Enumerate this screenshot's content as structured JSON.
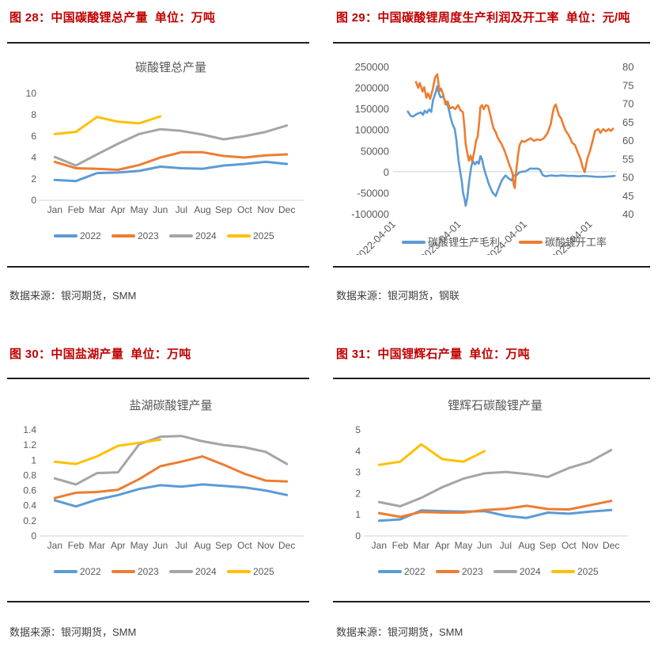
{
  "colors": {
    "title_red": "#c00000",
    "axis_text": "#595959",
    "axis_line": "#d9d9d9",
    "source_text": "#3f3f3f",
    "s2022": "#5B9BD5",
    "s2023": "#ED7D31",
    "s2024": "#A5A5A5",
    "s2025": "#FFC000"
  },
  "sections": [
    {
      "title": "图 28：中国碳酸锂总产量  单位：万吨",
      "source": "数据来源：银河期货，SMM"
    },
    {
      "title": "图 29：中国碳酸锂周度生产利润及开工率  单位：元/吨",
      "source": "数据来源：银河期货，钢联"
    },
    {
      "title": "图 30：中国盐湖产量  单位：万吨",
      "source": "数据来源：银河期货，SMM"
    },
    {
      "title": "图 31：中国锂辉石产量  单位：万吨",
      "source": "数据来源：银河期货，SMM"
    }
  ],
  "chart_data": [
    {
      "type": "line",
      "title": "碳酸锂总产量",
      "categories": [
        "Jan",
        "Feb",
        "Mar",
        "Apr",
        "May",
        "Jun",
        "Jul",
        "Aug",
        "Sep",
        "Oct",
        "Nov",
        "Dec"
      ],
      "ylim": [
        0,
        10
      ],
      "ystep": 2,
      "grid": false,
      "legend_position": "bottom",
      "series": [
        {
          "name": "2022",
          "color": "#5B9BD5",
          "values": [
            1.9,
            1.8,
            2.55,
            2.6,
            2.75,
            3.15,
            3.0,
            2.95,
            3.25,
            3.4,
            3.6,
            3.4
          ]
        },
        {
          "name": "2023",
          "color": "#ED7D31",
          "values": [
            3.6,
            3.0,
            2.95,
            2.85,
            3.3,
            4.0,
            4.5,
            4.5,
            4.15,
            4.0,
            4.2,
            4.3
          ]
        },
        {
          "name": "2024",
          "color": "#A5A5A5",
          "values": [
            4.05,
            3.25,
            4.3,
            5.3,
            6.2,
            6.65,
            6.5,
            6.15,
            5.7,
            6.0,
            6.4,
            7.0
          ]
        },
        {
          "name": "2025",
          "color": "#FFC000",
          "values": [
            6.2,
            6.4,
            7.8,
            7.35,
            7.2,
            7.85
          ]
        }
      ]
    },
    {
      "type": "line",
      "title": "",
      "x_axis_note": "weekly, x in months since 2022-04-01",
      "x_domain": [
        0,
        41
      ],
      "x_ticks": [
        {
          "m": 0,
          "label": "2022-04-01"
        },
        {
          "m": 12,
          "label": "2023-04-01"
        },
        {
          "m": 24,
          "label": "2024-04-01"
        },
        {
          "m": 36,
          "label": "2025-04-01"
        }
      ],
      "left_axis": {
        "min": -100000,
        "max": 250000,
        "step": 50000
      },
      "right_axis": {
        "min": 40,
        "max": 80,
        "step": 5
      },
      "grid": "zero-line-only",
      "legend_position": "bottom",
      "series": [
        {
          "name": "碳酸锂生产毛利",
          "axis": "left",
          "color": "#5B9BD5",
          "points": [
            [
              2.7,
              143000
            ],
            [
              3.2,
              133000
            ],
            [
              3.7,
              131000
            ],
            [
              4.3,
              137000
            ],
            [
              5.1,
              141000
            ],
            [
              5.5,
              135000
            ],
            [
              5.8,
              145000
            ],
            [
              6.2,
              140000
            ],
            [
              6.6,
              148000
            ],
            [
              7.0,
              142000
            ],
            [
              7.3,
              169000
            ],
            [
              7.8,
              188000
            ],
            [
              8.1,
              203000
            ],
            [
              8.4,
              186000
            ],
            [
              8.7,
              177000
            ],
            [
              9.1,
              179000
            ],
            [
              9.6,
              167000
            ],
            [
              10.1,
              154000
            ],
            [
              10.6,
              126000
            ],
            [
              10.9,
              113000
            ],
            [
              11.3,
              101000
            ],
            [
              11.6,
              75000
            ],
            [
              11.8,
              51000
            ],
            [
              12.0,
              26000
            ],
            [
              12.3,
              0
            ],
            [
              12.6,
              -24000
            ],
            [
              12.8,
              -49000
            ],
            [
              13.1,
              -65000
            ],
            [
              13.3,
              -81000
            ],
            [
              13.6,
              -62000
            ],
            [
              13.8,
              -37000
            ],
            [
              14.0,
              -18000
            ],
            [
              14.3,
              10000
            ],
            [
              14.6,
              26000
            ],
            [
              15.0,
              17000
            ],
            [
              15.4,
              24000
            ],
            [
              15.7,
              19000
            ],
            [
              16.0,
              37000
            ],
            [
              16.3,
              30000
            ],
            [
              16.6,
              10000
            ],
            [
              17.1,
              -11000
            ],
            [
              17.5,
              -28000
            ],
            [
              18.2,
              -49000
            ],
            [
              18.8,
              -58000
            ],
            [
              19.2,
              -44000
            ],
            [
              19.5,
              -34000
            ],
            [
              20.0,
              -19000
            ],
            [
              20.6,
              -9000
            ],
            [
              21.1,
              -15000
            ],
            [
              21.7,
              -21000
            ],
            [
              22.1,
              -9000
            ],
            [
              22.6,
              -9000
            ],
            [
              23.1,
              -2000
            ],
            [
              23.6,
              0
            ],
            [
              24.3,
              1000
            ],
            [
              24.7,
              4000
            ],
            [
              25.1,
              7500
            ],
            [
              25.8,
              7000
            ],
            [
              26.4,
              7500
            ],
            [
              26.9,
              5000
            ],
            [
              27.4,
              -8000
            ],
            [
              27.9,
              -11000
            ],
            [
              28.9,
              -9000
            ],
            [
              29.9,
              -10000
            ],
            [
              31.0,
              -9000
            ],
            [
              32.0,
              -10000
            ],
            [
              33.0,
              -10000
            ],
            [
              34.0,
              -11000
            ],
            [
              35.0,
              -10000
            ],
            [
              36.0,
              -11000
            ],
            [
              37.0,
              -12000
            ],
            [
              38.0,
              -12500
            ],
            [
              39.0,
              -12000
            ],
            [
              40.0,
              -11000
            ],
            [
              40.6,
              -10000
            ]
          ]
        },
        {
          "name": "碳酸锂开工率",
          "axis": "right",
          "color": "#ED7D31",
          "points": [
            [
              4.2,
              75.8
            ],
            [
              4.6,
              74.2
            ],
            [
              4.9,
              75.5
            ],
            [
              5.4,
              73.2
            ],
            [
              5.7,
              74.4
            ],
            [
              6.1,
              71.5
            ],
            [
              6.4,
              72.7
            ],
            [
              6.8,
              71.2
            ],
            [
              7.3,
              74.0
            ],
            [
              7.7,
              77.0
            ],
            [
              8.1,
              77.9
            ],
            [
              8.5,
              73.3
            ],
            [
              8.8,
              74.0
            ],
            [
              9.2,
              72.3
            ],
            [
              9.6,
              69.7
            ],
            [
              10.0,
              70.5
            ],
            [
              10.4,
              68.6
            ],
            [
              10.9,
              69.0
            ],
            [
              11.4,
              68.4
            ],
            [
              11.9,
              69.5
            ],
            [
              12.4,
              68.0
            ],
            [
              12.8,
              67.6
            ],
            [
              13.1,
              63.2
            ],
            [
              13.3,
              58.9
            ],
            [
              13.6,
              56.5
            ],
            [
              13.9,
              54.4
            ],
            [
              14.2,
              55.8
            ],
            [
              14.5,
              54.2
            ],
            [
              14.9,
              57.0
            ],
            [
              15.2,
              59.8
            ],
            [
              15.5,
              60.9
            ],
            [
              15.8,
              65.2
            ],
            [
              16.0,
              69.0
            ],
            [
              16.3,
              69.5
            ],
            [
              16.6,
              68.4
            ],
            [
              17.0,
              69.5
            ],
            [
              17.4,
              69.3
            ],
            [
              17.8,
              66.9
            ],
            [
              18.1,
              65.0
            ],
            [
              18.4,
              63.2
            ],
            [
              18.8,
              62.2
            ],
            [
              19.1,
              60.9
            ],
            [
              19.5,
              59.8
            ],
            [
              19.9,
              58.9
            ],
            [
              20.4,
              57.2
            ],
            [
              20.8,
              55.5
            ],
            [
              21.3,
              53.3
            ],
            [
              21.6,
              52.2
            ],
            [
              21.9,
              50.8
            ],
            [
              22.1,
              47.9
            ],
            [
              22.3,
              47.0
            ],
            [
              22.6,
              52.2
            ],
            [
              22.9,
              56.1
            ],
            [
              23.2,
              58.7
            ],
            [
              23.6,
              59.8
            ],
            [
              24.1,
              59.5
            ],
            [
              24.6,
              60.0
            ],
            [
              25.2,
              60.5
            ],
            [
              25.8,
              59.8
            ],
            [
              26.4,
              60.2
            ],
            [
              27.0,
              60.0
            ],
            [
              27.6,
              60.5
            ],
            [
              28.3,
              61.9
            ],
            [
              28.9,
              64.4
            ],
            [
              29.2,
              67.1
            ],
            [
              29.5,
              69.0
            ],
            [
              29.8,
              69.7
            ],
            [
              30.4,
              66.7
            ],
            [
              30.8,
              65.9
            ],
            [
              31.2,
              64.1
            ],
            [
              31.6,
              62.6
            ],
            [
              32.1,
              61.5
            ],
            [
              32.5,
              60.4
            ],
            [
              32.8,
              59.3
            ],
            [
              33.3,
              58.7
            ],
            [
              33.7,
              57.2
            ],
            [
              34.0,
              56.1
            ],
            [
              34.4,
              54.6
            ],
            [
              34.7,
              52.8
            ],
            [
              35.1,
              51.3
            ],
            [
              35.6,
              55.0
            ],
            [
              36.1,
              57.2
            ],
            [
              36.6,
              60.0
            ],
            [
              37.0,
              62.5
            ],
            [
              37.6,
              63.0
            ],
            [
              38.0,
              62.0
            ],
            [
              38.5,
              63.0
            ],
            [
              39.0,
              62.4
            ],
            [
              39.5,
              63.0
            ],
            [
              39.9,
              62.5
            ],
            [
              40.3,
              63.1
            ]
          ]
        }
      ]
    },
    {
      "type": "line",
      "title": "盐湖碳酸锂产量",
      "categories": [
        "Jan",
        "Feb",
        "Mar",
        "Apr",
        "May",
        "Jun",
        "Jul",
        "Aug",
        "Sep",
        "Oct",
        "Nov",
        "Dec"
      ],
      "ylim": [
        0,
        1.4
      ],
      "ystep": 0.2,
      "grid": false,
      "legend_position": "bottom",
      "series": [
        {
          "name": "2022",
          "color": "#5B9BD5",
          "values": [
            0.47,
            0.39,
            0.48,
            0.54,
            0.62,
            0.67,
            0.65,
            0.68,
            0.66,
            0.64,
            0.6,
            0.54
          ]
        },
        {
          "name": "2023",
          "color": "#ED7D31",
          "values": [
            0.5,
            0.57,
            0.58,
            0.61,
            0.75,
            0.92,
            0.98,
            1.05,
            0.94,
            0.82,
            0.73,
            0.72
          ]
        },
        {
          "name": "2024",
          "color": "#A5A5A5",
          "values": [
            0.76,
            0.68,
            0.83,
            0.84,
            1.21,
            1.31,
            1.32,
            1.25,
            1.2,
            1.17,
            1.11,
            0.95
          ]
        },
        {
          "name": "2025",
          "color": "#FFC000",
          "values": [
            0.98,
            0.95,
            1.05,
            1.19,
            1.23,
            1.27
          ]
        }
      ]
    },
    {
      "type": "line",
      "title": "锂辉石碳酸锂产量",
      "categories": [
        "Jan",
        "Feb",
        "Mar",
        "Apr",
        "May",
        "Jun",
        "Jul",
        "Aug",
        "Sep",
        "Oct",
        "Nov",
        "Dec"
      ],
      "ylim": [
        0,
        5
      ],
      "ystep": 1,
      "grid": false,
      "legend_position": "bottom",
      "series": [
        {
          "name": "2022",
          "color": "#5B9BD5",
          "values": [
            0.72,
            0.78,
            1.2,
            1.17,
            1.15,
            1.17,
            0.95,
            0.85,
            1.1,
            1.05,
            1.15,
            1.22
          ]
        },
        {
          "name": "2023",
          "color": "#ED7D31",
          "values": [
            1.08,
            0.9,
            1.13,
            1.1,
            1.1,
            1.22,
            1.28,
            1.42,
            1.27,
            1.25,
            1.45,
            1.65
          ]
        },
        {
          "name": "2024",
          "color": "#A5A5A5",
          "values": [
            1.6,
            1.4,
            1.8,
            2.3,
            2.7,
            2.95,
            3.02,
            2.92,
            2.78,
            3.2,
            3.5,
            4.05
          ]
        },
        {
          "name": "2025",
          "color": "#FFC000",
          "values": [
            3.35,
            3.5,
            4.32,
            3.62,
            3.5,
            4.0
          ]
        }
      ]
    }
  ]
}
